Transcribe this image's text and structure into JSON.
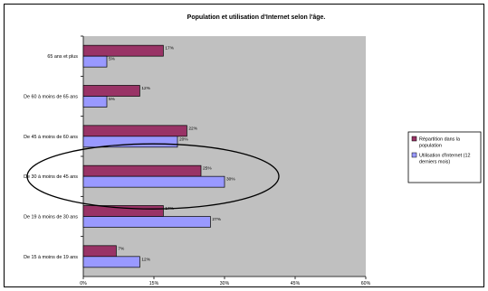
{
  "chart_data": {
    "type": "bar",
    "orientation": "horizontal",
    "title": "Population et utilisation d'Internet selon l'âge.",
    "xlabel": "",
    "ylabel": "",
    "xlim": [
      0,
      60
    ],
    "x_ticks": [
      "0%",
      "15%",
      "30%",
      "45%",
      "60%"
    ],
    "grid": false,
    "legend_position": "right",
    "categories": [
      "65 ans et plus",
      "De 60 à moins de 65 ans",
      "De 45 à moins de 60 ans",
      "De 30 à moins de 45 ans",
      "De 19 à moins de 30 ans",
      "De 15 à moins de 19 ans"
    ],
    "series": [
      {
        "name": "Répartition dans la population",
        "values": [
          17,
          12,
          22,
          25,
          17,
          7
        ],
        "labels": [
          "17%",
          "12%",
          "22%",
          "25%",
          "17%",
          "7%"
        ],
        "color": "#993366"
      },
      {
        "name": "Utilisation d'Internet (12 derniers mois)",
        "values": [
          5,
          5,
          20,
          30,
          27,
          12
        ],
        "labels": [
          "5%",
          "5%",
          "20%",
          "30%",
          "27%",
          "12%"
        ],
        "color": "#9999ff"
      }
    ],
    "legend_lines": [
      [
        "Répartition dans la",
        "population"
      ],
      [
        "Utilisation d'Internet (12",
        "derniers mois)"
      ]
    ],
    "plot_background": "#c0c0c0",
    "annotation": "ellipse highlighting De 30 à moins de 45 ans"
  }
}
